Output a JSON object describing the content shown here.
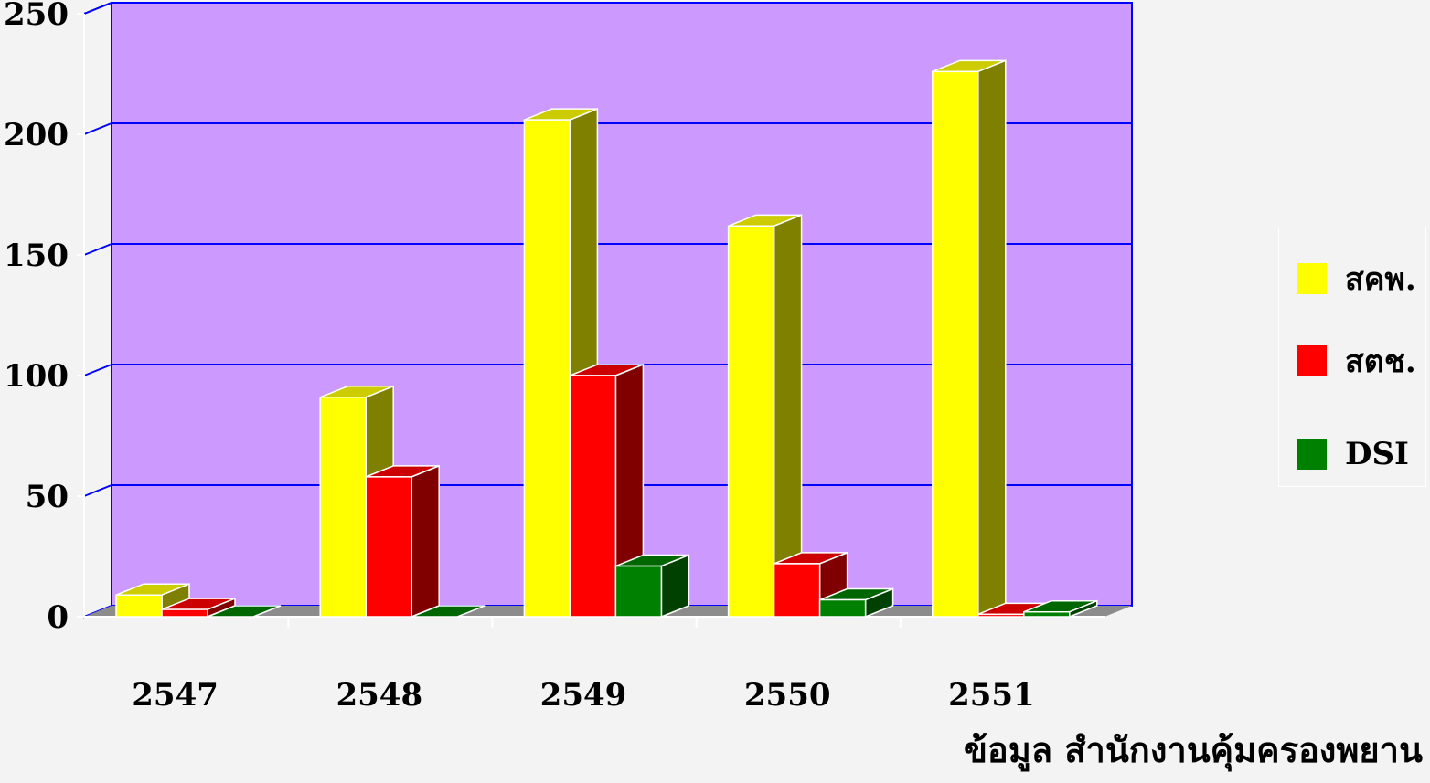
{
  "chart_data": {
    "type": "bar",
    "categories": [
      "2547",
      "2548",
      "2549",
      "2550",
      "2551"
    ],
    "series": [
      {
        "name": "สคพ.",
        "values": [
          9,
          91,
          206,
          162,
          226
        ],
        "color": "#ffff00"
      },
      {
        "name": "สตช.",
        "values": [
          3,
          58,
          100,
          22,
          1
        ],
        "color": "#ff0000"
      },
      {
        "name": "DSI",
        "values": [
          0,
          0,
          21,
          7,
          2
        ],
        "color": "#008000"
      }
    ],
    "ylim": [
      0,
      250
    ],
    "yticks": [
      "0",
      "50",
      "100",
      "150",
      "200",
      "250"
    ],
    "grid": true,
    "legend": "right",
    "plot_color": "#cc99ff",
    "grid_color": "#0000ff"
  },
  "source_note": "ข้อมูล สำนักงานคุ้มครองพยาน"
}
